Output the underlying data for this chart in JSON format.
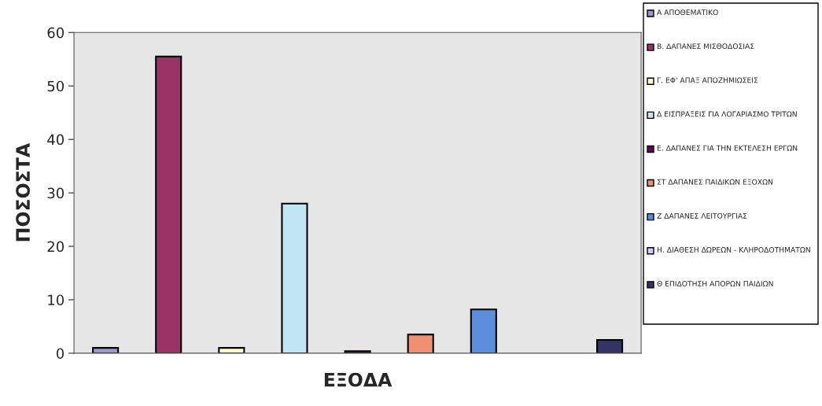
{
  "chart_data": {
    "type": "bar",
    "xlabel": "ΕΞΟΔΑ",
    "ylabel": "ΠΟΣΟΣΤΑ",
    "categories": [
      null,
      null,
      null,
      null,
      null,
      null,
      null,
      null,
      null
    ],
    "series": [
      {
        "name": "Α ΑΠΟΘΕΜΑΤΙΚΟ",
        "color": "#9999cc",
        "values": [
          1.0,
          null,
          null,
          null,
          null,
          null,
          null,
          null,
          null
        ]
      },
      {
        "name": "Β. ΔΑΠΑΝΕΣ ΜΙΣΘΟΔΟΣΙΑΣ",
        "color": "#993366",
        "values": [
          null,
          55.5,
          null,
          null,
          null,
          null,
          null,
          null,
          null
        ]
      },
      {
        "name": "Γ. ΕΦ' ΑΠΑΞ ΑΠΟΖΗΜΙΩΣΕΙΣ",
        "color": "#ffffcc",
        "values": [
          null,
          null,
          1.0,
          null,
          null,
          null,
          null,
          null,
          null
        ]
      },
      {
        "name": "Δ ΕΙΣΠΡΑΞΕΙΣ ΓΙΑ ΛΟΓΑΡΙΑΣΜΟ ΤΡΙΤΩΝ",
        "color": "#bfe6f2",
        "values": [
          null,
          null,
          null,
          28.0,
          null,
          null,
          null,
          null,
          null
        ]
      },
      {
        "name": "Ε. ΔΑΠΑΝΕΣ ΓΙΑ ΤΗΝ ΕΚΤΕΛΕΣΗ ΕΡΓΩΝ",
        "color": "#660066",
        "values": [
          null,
          null,
          null,
          null,
          0.4,
          null,
          null,
          null,
          null
        ]
      },
      {
        "name": "ΣΤ ΔΑΠΑΝΕΣ ΠΑΙΔΙΚΩΝ ΕΞΟΧΩΝ",
        "color": "#f09070",
        "values": [
          null,
          null,
          null,
          null,
          null,
          3.5,
          null,
          null,
          null
        ]
      },
      {
        "name": "Ζ ΔΑΠΑΝΕΣ ΛΕΙΤΟΥΡΓΙΑΣ",
        "color": "#5a8fdc",
        "values": [
          null,
          null,
          null,
          null,
          null,
          null,
          8.2,
          null,
          null
        ]
      },
      {
        "name": "Η. ΔΙΑΘΕΣΗ ΔΩΡΕΩΝ - ΚΛΗΡΟΔΟΤΗΜΑΤΩΝ",
        "color": "#ccccff",
        "values": [
          null,
          null,
          null,
          null,
          null,
          null,
          null,
          null,
          null
        ]
      },
      {
        "name": "Θ ΕΠΙΔΟΤΗΣΗ ΑΠΟΡΩΝ ΠΑΙΔΙΩΝ",
        "color": "#333366",
        "values": [
          null,
          null,
          null,
          null,
          null,
          null,
          null,
          null,
          2.5
        ]
      }
    ],
    "ylim": [
      0,
      60
    ],
    "yticks": [
      0,
      10,
      20,
      30,
      40,
      50,
      60
    ],
    "grid": false,
    "legend": "right"
  }
}
